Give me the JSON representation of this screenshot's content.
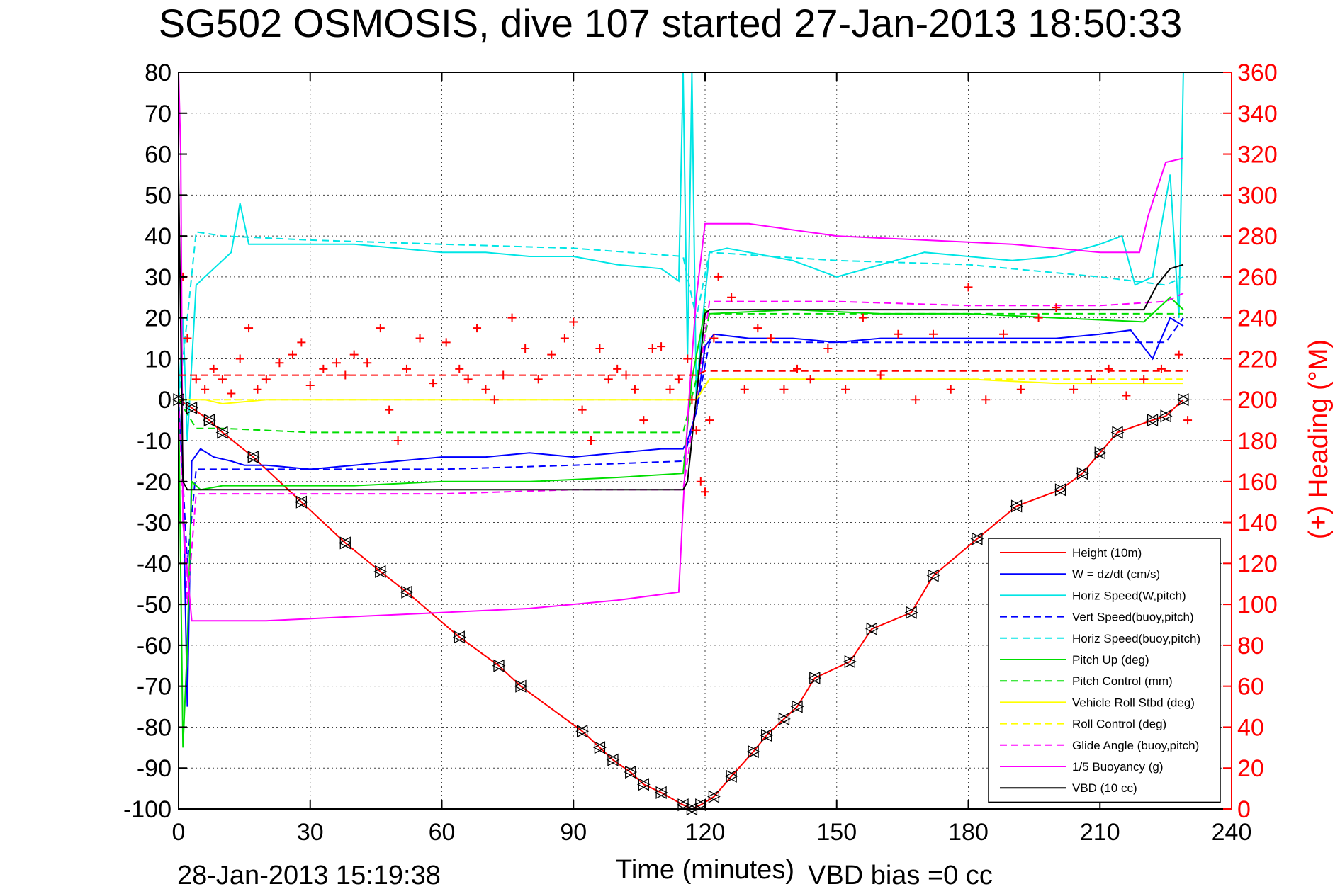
{
  "title": "SG502 OSMOSIS, dive 107 started 27-Jan-2013 18:50:33",
  "footer": {
    "timestamp": "28-Jan-2013 15:19:38",
    "vbd_bias": "VBD bias =0 cc"
  },
  "chart_data": {
    "type": "line",
    "title": "SG502 OSMOSIS, dive 107 started 27-Jan-2013 18:50:33",
    "xlabel": "Time (minutes)",
    "ylabel": "",
    "y2label": "(+) Heading (°M)",
    "xlim": [
      0,
      240
    ],
    "ylim": [
      -100,
      80
    ],
    "y2lim": [
      0,
      360
    ],
    "xticks": [
      "0",
      "30",
      "60",
      "90",
      "120",
      "150",
      "180",
      "210",
      "240"
    ],
    "yticks": [
      "80",
      "70",
      "60",
      "50",
      "40",
      "30",
      "20",
      "10",
      "0",
      "-10",
      "-20",
      "-30",
      "-40",
      "-50",
      "-60",
      "-70",
      "-80",
      "-90",
      "-100"
    ],
    "y2ticks": [
      "360",
      "340",
      "320",
      "300",
      "280",
      "260",
      "240",
      "220",
      "200",
      "180",
      "160",
      "140",
      "120",
      "100",
      "80",
      "60",
      "40",
      "20",
      "0"
    ],
    "grid": true,
    "legend_position": "bottom-right",
    "legend": [
      {
        "name": "Height (10m)",
        "color": "#ff0000",
        "dash": "solid"
      },
      {
        "name": "W = dz/dt (cm/s)",
        "color": "#0000ff",
        "dash": "solid"
      },
      {
        "name": "Horiz Speed(W,pitch)",
        "color": "#00e5e5",
        "dash": "solid"
      },
      {
        "name": "Vert Speed(buoy,pitch)",
        "color": "#0000ff",
        "dash": "dashed"
      },
      {
        "name": "Horiz Speed(buoy,pitch)",
        "color": "#00e5e5",
        "dash": "dashed"
      },
      {
        "name": "Pitch Up (deg)",
        "color": "#00dd00",
        "dash": "solid"
      },
      {
        "name": "Pitch Control (mm)",
        "color": "#00dd00",
        "dash": "dashed"
      },
      {
        "name": "Vehicle Roll Stbd (deg)",
        "color": "#ffff00",
        "dash": "solid"
      },
      {
        "name": "Roll Control (deg)",
        "color": "#ffff00",
        "dash": "dashed"
      },
      {
        "name": "Glide Angle (buoy,pitch)",
        "color": "#ff00ff",
        "dash": "dashed"
      },
      {
        "name": "1/5 Buoyancy (g)",
        "color": "#ff00ff",
        "dash": "solid"
      },
      {
        "name": "VBD (10 cc)",
        "color": "#000000",
        "dash": "solid"
      }
    ],
    "series": [
      {
        "name": "Height (10m)",
        "axis": "left",
        "color": "#ff0000",
        "dash": "solid",
        "marker": "triangles",
        "x": [
          0,
          3,
          7,
          10,
          17,
          28,
          38,
          46,
          52,
          64,
          73,
          78,
          92,
          96,
          99,
          103,
          106,
          110,
          115,
          117,
          119,
          122,
          126,
          131,
          134,
          138,
          141,
          145,
          153,
          158,
          167,
          172,
          182,
          191,
          201,
          206,
          210,
          214,
          222,
          225,
          229
        ],
        "y": [
          0,
          -2,
          -5,
          -8,
          -14,
          -25,
          -35,
          -42,
          -47,
          -58,
          -65,
          -70,
          -81,
          -85,
          -88,
          -91,
          -94,
          -96,
          -99,
          -100,
          -99,
          -97,
          -92,
          -86,
          -82,
          -78,
          -75,
          -68,
          -64,
          -56,
          -52,
          -43,
          -34,
          -26,
          -22,
          -18,
          -13,
          -8,
          -5,
          -4,
          0
        ]
      },
      {
        "name": "W = dz/dt (cm/s)",
        "axis": "left",
        "color": "#0000ff",
        "dash": "solid",
        "x": [
          0,
          1,
          2,
          3,
          5,
          8,
          12,
          15,
          20,
          30,
          40,
          50,
          60,
          70,
          80,
          90,
          100,
          110,
          115,
          116,
          118,
          120,
          122,
          130,
          140,
          150,
          160,
          170,
          180,
          190,
          200,
          210,
          217,
          222,
          226,
          229
        ],
        "y": [
          0,
          -20,
          -75,
          -15,
          -12,
          -14,
          -15,
          -16,
          -16,
          -17,
          -16,
          -15,
          -14,
          -14,
          -13,
          -14,
          -13,
          -12,
          -12,
          -10,
          -3,
          13,
          16,
          15,
          15,
          14,
          15,
          15,
          15,
          15,
          15,
          16,
          17,
          10,
          20,
          18
        ]
      },
      {
        "name": "Horiz Speed(W,pitch)",
        "axis": "left",
        "color": "#00e5e5",
        "dash": "solid",
        "x": [
          0,
          1,
          2,
          4,
          8,
          12,
          14,
          16,
          20,
          30,
          40,
          50,
          60,
          70,
          80,
          90,
          100,
          110,
          114,
          115,
          116,
          117,
          118,
          119,
          121,
          125,
          130,
          140,
          150,
          160,
          170,
          180,
          190,
          200,
          210,
          215,
          218,
          222,
          226,
          228,
          229
        ],
        "y": [
          0,
          20,
          -10,
          28,
          32,
          36,
          48,
          38,
          38,
          38,
          38,
          37,
          36,
          36,
          35,
          35,
          33,
          32,
          29,
          80,
          10,
          80,
          0,
          15,
          36,
          37,
          36,
          34,
          30,
          33,
          36,
          35,
          34,
          35,
          38,
          40,
          28,
          30,
          55,
          20,
          80
        ]
      },
      {
        "name": "Vert Speed(buoy,pitch)",
        "axis": "left",
        "color": "#0000ff",
        "dash": "dashed",
        "x": [
          0,
          2,
          4,
          10,
          30,
          60,
          90,
          115,
          118,
          121,
          150,
          180,
          210,
          225,
          229
        ],
        "y": [
          0,
          -40,
          -17,
          -17,
          -17,
          -17,
          -16,
          -15,
          -3,
          14,
          14,
          14,
          14,
          14,
          20
        ]
      },
      {
        "name": "Horiz Speed(buoy,pitch)",
        "axis": "left",
        "color": "#00e5e5",
        "dash": "dashed",
        "x": [
          0,
          2,
          4,
          10,
          30,
          60,
          90,
          115,
          118,
          121,
          150,
          180,
          210,
          225,
          229
        ],
        "y": [
          0,
          20,
          41,
          40,
          39,
          38,
          37,
          35,
          20,
          36,
          34,
          33,
          30,
          28,
          30
        ]
      },
      {
        "name": "Pitch Up (deg)",
        "axis": "left",
        "color": "#00dd00",
        "dash": "solid",
        "x": [
          0,
          1,
          2,
          3,
          5,
          10,
          20,
          40,
          60,
          80,
          100,
          115,
          117,
          120,
          121,
          140,
          160,
          180,
          200,
          220,
          226,
          229
        ],
        "y": [
          0,
          -85,
          -60,
          -20,
          -22,
          -21,
          -21,
          -21,
          -20,
          -20,
          -19,
          -18,
          5,
          22,
          21,
          22,
          21,
          21,
          20,
          19,
          25,
          22
        ]
      },
      {
        "name": "Pitch Control (mm)",
        "axis": "left",
        "color": "#00dd00",
        "dash": "dashed",
        "x": [
          0,
          4,
          10,
          30,
          60,
          90,
          115,
          118,
          121,
          150,
          180,
          210,
          229
        ],
        "y": [
          0,
          -7,
          -7,
          -8,
          -8,
          -8,
          -8,
          5,
          21,
          21,
          21,
          21,
          21
        ]
      },
      {
        "name": "Vehicle Roll Stbd (deg)",
        "axis": "left",
        "color": "#ffff00",
        "dash": "solid",
        "x": [
          0,
          3,
          6,
          10,
          20,
          40,
          60,
          80,
          100,
          115,
          118,
          121,
          140,
          160,
          180,
          200,
          210,
          220,
          229
        ],
        "y": [
          0,
          0,
          0,
          -1,
          0,
          0,
          0,
          0,
          0,
          0,
          0,
          5,
          5,
          5,
          5,
          4,
          4,
          4,
          4
        ]
      },
      {
        "name": "Roll Control (deg)",
        "axis": "left",
        "color": "#ffff00",
        "dash": "dashed",
        "x": [
          0,
          5,
          28,
          46,
          64,
          73,
          78,
          92,
          96,
          106,
          110,
          115,
          118,
          121,
          140,
          160,
          180,
          200,
          220,
          229
        ],
        "y": [
          0,
          0,
          0,
          0,
          0,
          0,
          0,
          0,
          0,
          0,
          0,
          0,
          0,
          5,
          5,
          5,
          5,
          5,
          5,
          5
        ]
      },
      {
        "name": "Glide Angle (buoy,pitch)",
        "axis": "left",
        "color": "#ff00ff",
        "dash": "dashed",
        "x": [
          0,
          2,
          4,
          10,
          30,
          60,
          90,
          115,
          118,
          121,
          150,
          180,
          210,
          225,
          229
        ],
        "y": [
          0,
          -50,
          -23,
          -23,
          -23,
          -23,
          -22,
          -22,
          0,
          24,
          24,
          23,
          23,
          24,
          26
        ]
      },
      {
        "name": "1/5 Buoyancy (g)",
        "axis": "left",
        "color": "#ff00ff",
        "dash": "solid",
        "x": [
          0,
          0.5,
          1,
          3,
          20,
          40,
          60,
          80,
          100,
          114,
          116,
          118,
          120,
          130,
          150,
          170,
          190,
          210,
          219,
          221,
          225,
          229
        ],
        "y": [
          80,
          60,
          -30,
          -54,
          -54,
          -53,
          -52,
          -51,
          -49,
          -47,
          -5,
          25,
          43,
          43,
          40,
          39,
          38,
          36,
          36,
          45,
          58,
          59
        ]
      },
      {
        "name": "VBD (10 cc)",
        "axis": "left",
        "color": "#000000",
        "dash": "solid",
        "x": [
          0,
          1,
          2,
          3,
          10,
          30,
          60,
          90,
          115,
          116,
          120,
          121,
          150,
          180,
          210,
          220,
          223,
          226,
          229
        ],
        "y": [
          55,
          -20,
          -22,
          -22,
          -22,
          -22,
          -22,
          -22,
          -22,
          -20,
          21,
          22,
          22,
          22,
          22,
          22,
          28,
          32,
          33
        ]
      },
      {
        "name": "Heading",
        "axis": "right",
        "color": "#ff0000",
        "dash": "none",
        "marker": "plus",
        "x": [
          1,
          2,
          4,
          6,
          8,
          10,
          12,
          14,
          16,
          18,
          20,
          23,
          26,
          28,
          30,
          33,
          36,
          38,
          40,
          43,
          46,
          48,
          50,
          52,
          55,
          58,
          61,
          64,
          66,
          68,
          70,
          72,
          74,
          76,
          79,
          82,
          85,
          88,
          90,
          92,
          94,
          96,
          98,
          100,
          102,
          104,
          106,
          108,
          110,
          112,
          114,
          116,
          117,
          118,
          119,
          120,
          121,
          122,
          123,
          126,
          129,
          132,
          135,
          138,
          141,
          144,
          148,
          152,
          156,
          160,
          164,
          168,
          172,
          176,
          180,
          184,
          188,
          192,
          196,
          200,
          204,
          208,
          212,
          216,
          220,
          224,
          228,
          230
        ],
        "y": [
          260,
          230,
          210,
          205,
          215,
          210,
          203,
          220,
          235,
          205,
          210,
          218,
          222,
          228,
          207,
          215,
          218,
          212,
          222,
          218,
          235,
          195,
          180,
          215,
          230,
          208,
          228,
          215,
          210,
          235,
          205,
          200,
          212,
          240,
          225,
          210,
          222,
          230,
          238,
          195,
          180,
          225,
          210,
          215,
          212,
          205,
          190,
          225,
          226,
          205,
          210,
          220,
          200,
          185,
          160,
          155,
          190,
          230,
          260,
          250,
          205,
          235,
          230,
          205,
          215,
          210,
          225,
          205,
          240,
          212,
          232,
          200,
          232,
          205,
          255,
          200,
          232,
          205,
          240,
          245,
          205,
          210,
          215,
          202,
          210,
          215,
          222,
          190
        ]
      },
      {
        "name": "Heading target",
        "axis": "right",
        "color": "#ff0000",
        "dash": "dashed",
        "x": [
          0,
          118,
          120,
          230
        ],
        "y": [
          212,
          212,
          214,
          214
        ]
      }
    ]
  }
}
